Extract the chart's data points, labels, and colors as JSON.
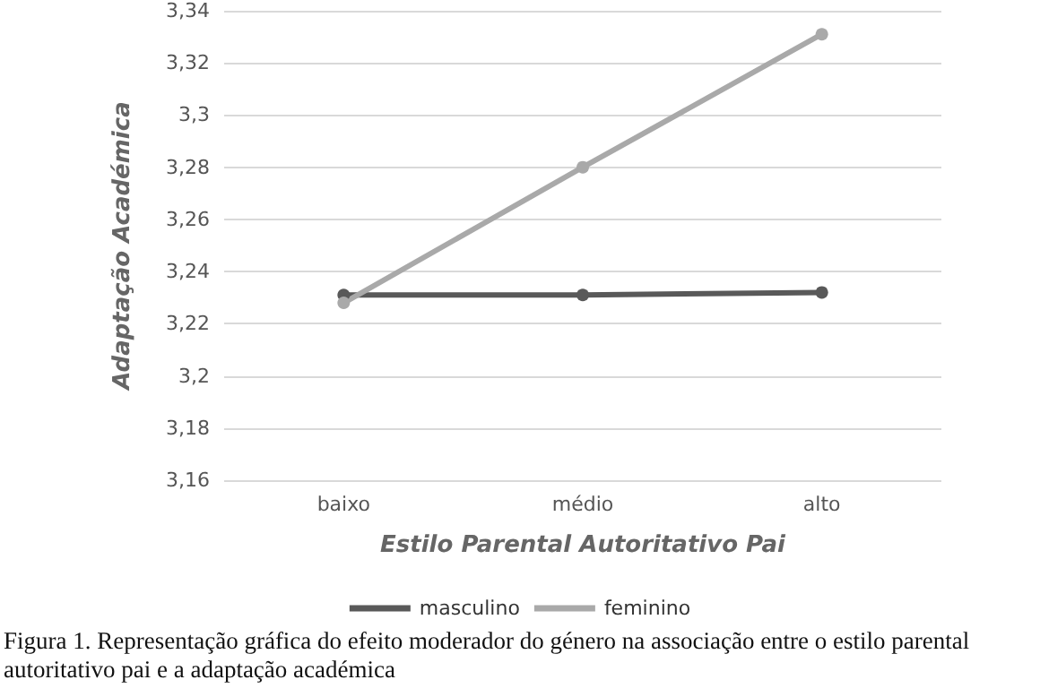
{
  "chart_data": {
    "type": "line",
    "xlabel": "Estilo Parental Autoritativo Pai",
    "ylabel": "Adaptação Académica",
    "categories": [
      "baixo",
      "médio",
      "alto"
    ],
    "series": [
      {
        "name": "masculino",
        "color": "#595959",
        "values": [
          3.231,
          3.231,
          3.232
        ]
      },
      {
        "name": "feminino",
        "color": "#a9a9a9",
        "values": [
          3.228,
          3.28,
          3.331
        ]
      }
    ],
    "ylim": [
      3.16,
      3.34
    ],
    "yticks": [
      {
        "value": 3.16,
        "label": "3,16"
      },
      {
        "value": 3.18,
        "label": "3,18"
      },
      {
        "value": 3.2,
        "label": "3,2"
      },
      {
        "value": 3.22,
        "label": "3,22"
      },
      {
        "value": 3.24,
        "label": "3,24"
      },
      {
        "value": 3.26,
        "label": "3,26"
      },
      {
        "value": 3.28,
        "label": "3,28"
      },
      {
        "value": 3.3,
        "label": "3,3"
      },
      {
        "value": 3.32,
        "label": "3,32"
      },
      {
        "value": 3.34,
        "label": "3,34"
      }
    ],
    "grid": "y",
    "legend": "bottom",
    "marker": "circle",
    "line_style": "solid",
    "annotations": [
      "Figura 1. Representação gráfica do efeito moderador do género na associação entre o estilo parental autoritativo pai e a adaptação académica"
    ]
  }
}
